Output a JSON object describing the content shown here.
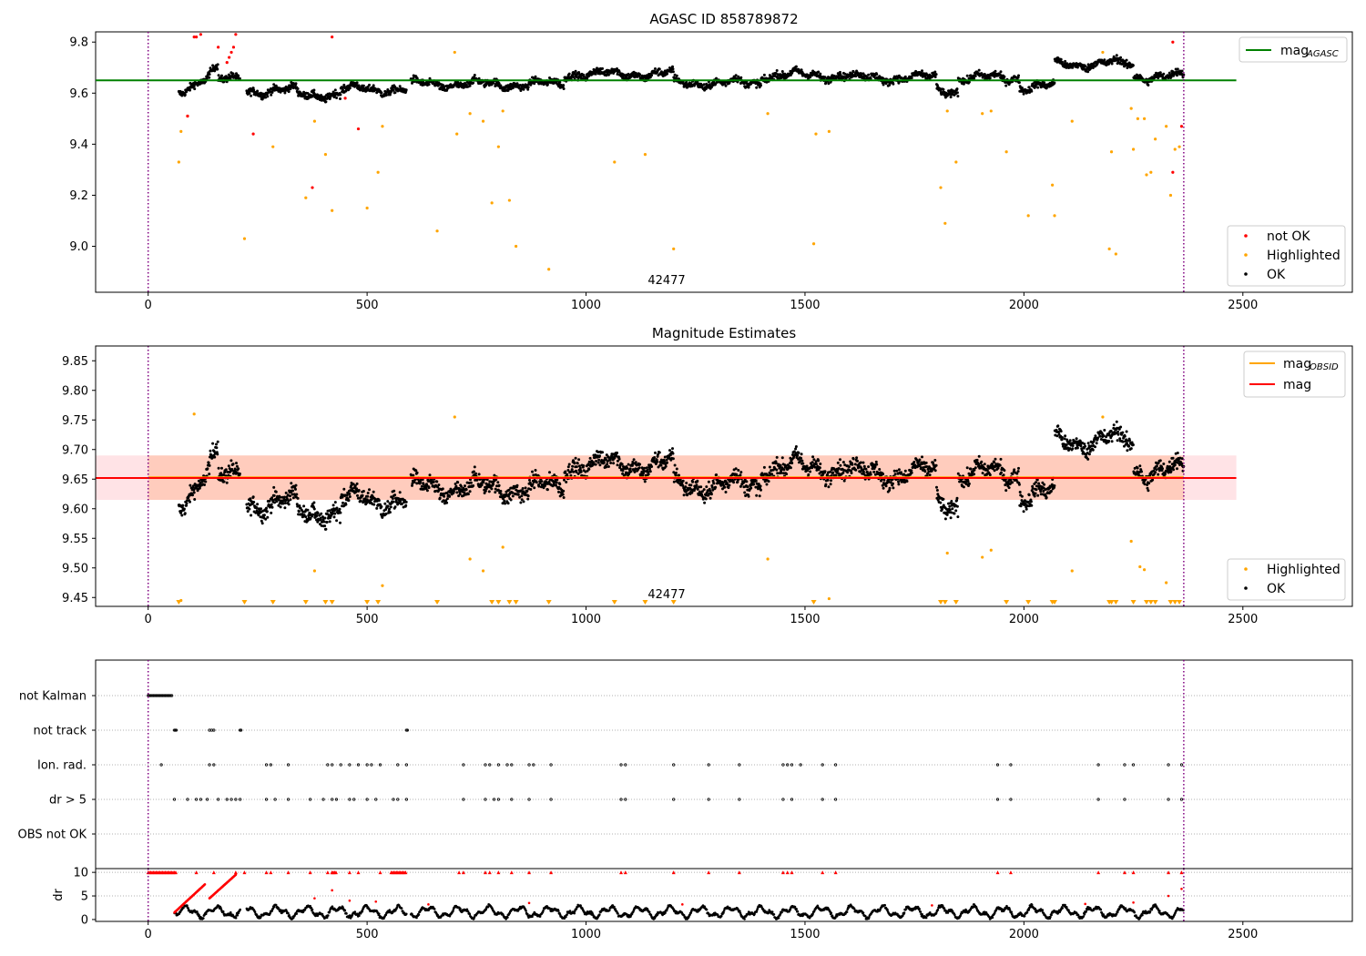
{
  "chart_data": [
    {
      "type": "scatter",
      "title": "AGASC ID 858789872",
      "annotation": "42477",
      "xlim": [
        -120,
        2750
      ],
      "ylim": [
        8.82,
        9.84
      ],
      "x_ticks": [
        "0",
        "500",
        "1000",
        "1500",
        "2000",
        "2500"
      ],
      "y_ticks": [
        "9.0",
        "9.2",
        "9.4",
        "9.6",
        "9.8"
      ],
      "vlines": [
        0,
        2365
      ],
      "hline": {
        "name": "mag",
        "sub": "AGASC",
        "value": 9.65,
        "xrange": [
          -120,
          2485
        ],
        "color": "#008000"
      },
      "legend_top": [
        {
          "label": "mag",
          "sub": "AGASC",
          "color": "#008000"
        }
      ],
      "legend_bottom": [
        {
          "label": "not OK",
          "color": "#ff0000"
        },
        {
          "label": "Highlighted",
          "color": "#ffa500"
        },
        {
          "label": "OK",
          "color": "#000000"
        }
      ],
      "highlighted_points": [
        [
          70,
          9.33
        ],
        [
          75,
          9.45
        ],
        [
          90,
          9.51
        ],
        [
          220,
          9.03
        ],
        [
          285,
          9.39
        ],
        [
          360,
          9.19
        ],
        [
          380,
          9.49
        ],
        [
          405,
          9.36
        ],
        [
          420,
          9.14
        ],
        [
          500,
          9.15
        ],
        [
          525,
          9.29
        ],
        [
          535,
          9.47
        ],
        [
          660,
          9.06
        ],
        [
          700,
          9.76
        ],
        [
          705,
          9.44
        ],
        [
          735,
          9.52
        ],
        [
          765,
          9.49
        ],
        [
          785,
          9.17
        ],
        [
          800,
          9.39
        ],
        [
          810,
          9.53
        ],
        [
          825,
          9.18
        ],
        [
          840,
          9.0
        ],
        [
          915,
          8.91
        ],
        [
          1065,
          9.33
        ],
        [
          1135,
          9.36
        ],
        [
          1200,
          8.99
        ],
        [
          1415,
          9.52
        ],
        [
          1520,
          9.01
        ],
        [
          1525,
          9.44
        ],
        [
          1555,
          9.45
        ],
        [
          1810,
          9.23
        ],
        [
          1820,
          9.09
        ],
        [
          1825,
          9.53
        ],
        [
          1845,
          9.33
        ],
        [
          1905,
          9.52
        ],
        [
          1925,
          9.53
        ],
        [
          1960,
          9.37
        ],
        [
          2010,
          9.12
        ],
        [
          2065,
          9.24
        ],
        [
          2070,
          9.12
        ],
        [
          2110,
          9.49
        ],
        [
          2180,
          9.76
        ],
        [
          2195,
          8.99
        ],
        [
          2200,
          9.37
        ],
        [
          2210,
          8.97
        ],
        [
          2245,
          9.54
        ],
        [
          2250,
          9.38
        ],
        [
          2260,
          9.5
        ],
        [
          2275,
          9.5
        ],
        [
          2280,
          9.28
        ],
        [
          2290,
          9.29
        ],
        [
          2300,
          9.42
        ],
        [
          2325,
          9.47
        ],
        [
          2335,
          9.2
        ],
        [
          2345,
          9.38
        ],
        [
          2355,
          9.39
        ]
      ],
      "notok_points": [
        [
          90,
          9.51
        ],
        [
          105,
          9.82
        ],
        [
          110,
          9.82
        ],
        [
          120,
          9.83
        ],
        [
          160,
          9.78
        ],
        [
          180,
          9.72
        ],
        [
          185,
          9.74
        ],
        [
          190,
          9.76
        ],
        [
          195,
          9.78
        ],
        [
          200,
          9.83
        ],
        [
          240,
          9.44
        ],
        [
          375,
          9.23
        ],
        [
          420,
          9.82
        ],
        [
          450,
          9.58
        ],
        [
          480,
          9.46
        ],
        [
          2340,
          9.29
        ],
        [
          2340,
          9.8
        ],
        [
          2360,
          9.47
        ]
      ]
    },
    {
      "type": "scatter",
      "title": "Magnitude Estimates",
      "annotation": "42477",
      "xlim": [
        -120,
        2750
      ],
      "ylim": [
        9.435,
        9.875
      ],
      "x_ticks": [
        "0",
        "500",
        "1000",
        "1500",
        "2000",
        "2500"
      ],
      "y_ticks": [
        "9.45",
        "9.50",
        "9.55",
        "9.60",
        "9.65",
        "9.70",
        "9.75",
        "9.80",
        "9.85"
      ],
      "vlines": [
        0,
        2365
      ],
      "bands": [
        {
          "color": "#ffb0b8",
          "opacity": 0.35,
          "y": [
            9.615,
            9.69
          ],
          "xrange": [
            -120,
            2485
          ]
        },
        {
          "color": "#ffa070",
          "opacity": 0.35,
          "y": [
            9.615,
            9.69
          ],
          "xrange": [
            0,
            2365
          ]
        }
      ],
      "hlines": [
        {
          "name": "mag",
          "sub": "OBSID",
          "value": 9.653,
          "xrange": [
            0,
            2365
          ],
          "color": "#ffa500"
        },
        {
          "name": "mag",
          "value": 9.652,
          "xrange": [
            -120,
            2485
          ],
          "color": "#ff0000"
        }
      ],
      "legend_top": [
        {
          "label": "mag",
          "sub": "OBSID",
          "color": "#ffa500"
        },
        {
          "label": "mag",
          "color": "#ff0000"
        }
      ],
      "legend_bottom": [
        {
          "label": "Highlighted",
          "color": "#ffa500"
        },
        {
          "label": "OK",
          "color": "#000000"
        }
      ],
      "highlighted_points": [
        [
          75,
          9.445
        ],
        [
          105,
          9.76
        ],
        [
          380,
          9.495
        ],
        [
          535,
          9.47
        ],
        [
          700,
          9.755
        ],
        [
          735,
          9.515
        ],
        [
          765,
          9.495
        ],
        [
          810,
          9.535
        ],
        [
          1415,
          9.515
        ],
        [
          1555,
          9.448
        ],
        [
          1825,
          9.525
        ],
        [
          1905,
          9.518
        ],
        [
          1925,
          9.53
        ],
        [
          2110,
          9.495
        ],
        [
          2180,
          9.755
        ],
        [
          2245,
          9.545
        ],
        [
          2265,
          9.502
        ],
        [
          2275,
          9.497
        ],
        [
          2325,
          9.475
        ]
      ],
      "floor_markers": [
        70,
        220,
        285,
        360,
        405,
        420,
        500,
        525,
        660,
        785,
        800,
        825,
        840,
        915,
        1065,
        1135,
        1200,
        1520,
        1810,
        1820,
        1845,
        1960,
        2010,
        2065,
        2070,
        2195,
        2200,
        2210,
        2250,
        2280,
        2290,
        2300,
        2335,
        2345,
        2355
      ]
    },
    {
      "type": "scatter",
      "title": "",
      "xlim": [
        -120,
        2750
      ],
      "categories": [
        "not Kalman",
        "not track",
        "Ion. rad.",
        "dr > 5",
        "OBS not OK"
      ],
      "flag_points": {
        "not Kalman": [
          [
            0,
            55
          ]
        ],
        "not track": [
          60,
          62,
          64,
          140,
          145,
          150,
          210,
          212,
          590,
          592
        ],
        "Ion. rad.": [
          30,
          140,
          150,
          270,
          280,
          320,
          410,
          420,
          440,
          460,
          480,
          500,
          510,
          530,
          570,
          590,
          720,
          770,
          780,
          800,
          820,
          830,
          870,
          880,
          920,
          1080,
          1090,
          1200,
          1280,
          1350,
          1450,
          1460,
          1470,
          1490,
          1540,
          1570,
          1940,
          1970,
          2170,
          2230,
          2250,
          2330,
          2360
        ],
        "dr > 5": [
          60,
          90,
          110,
          120,
          135,
          160,
          180,
          190,
          200,
          210,
          270,
          290,
          320,
          370,
          400,
          420,
          430,
          460,
          470,
          500,
          520,
          560,
          570,
          590,
          720,
          770,
          790,
          800,
          830,
          870,
          920,
          1080,
          1090,
          1200,
          1280,
          1350,
          1450,
          1470,
          1540,
          1570,
          1940,
          1970,
          2170,
          2230,
          2330,
          2360
        ],
        "OBS not OK": []
      }
    },
    {
      "type": "scatter",
      "title": "",
      "xlim": [
        -120,
        2750
      ],
      "ylim": [
        -0.4,
        10.8
      ],
      "ylabel": "dr",
      "y_ticks": [
        "0",
        "5",
        "10"
      ],
      "x_ticks": [
        "0",
        "500",
        "1000",
        "1500",
        "2000",
        "2500"
      ],
      "cap_value": 10,
      "cap_ranges": [
        [
          0,
          65
        ],
        [
          420,
          430
        ],
        [
          555,
          590
        ]
      ],
      "cap_points": [
        110,
        150,
        200,
        220,
        270,
        280,
        320,
        370,
        410,
        420,
        460,
        480,
        530,
        710,
        720,
        770,
        780,
        800,
        830,
        870,
        920,
        1080,
        1090,
        1200,
        1280,
        1350,
        1450,
        1460,
        1470,
        1540,
        1570,
        1940,
        1970,
        2170,
        2230,
        2250,
        2330,
        2360
      ],
      "ramps": [
        [
          60,
          1.5,
          130,
          7.5
        ],
        [
          140,
          4.5,
          200,
          9.5
        ]
      ]
    }
  ]
}
